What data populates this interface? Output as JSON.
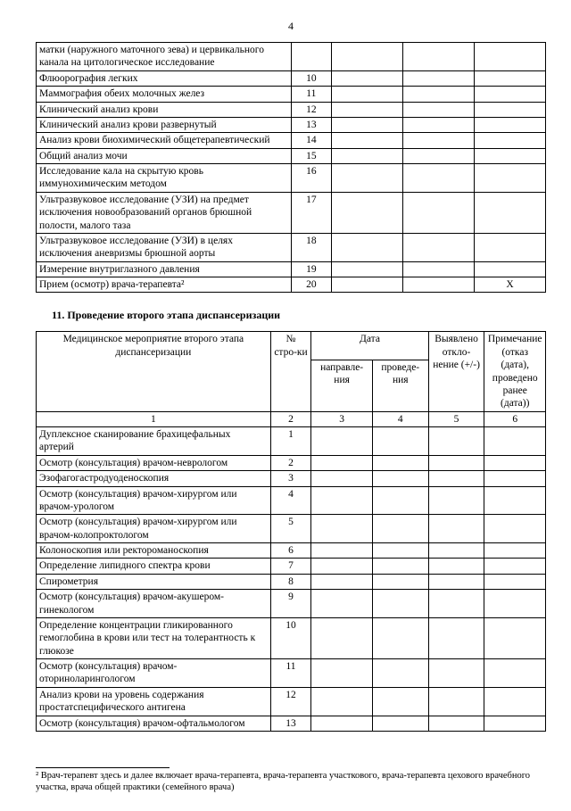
{
  "page_number": "4",
  "table1": {
    "col_widths_pct": [
      50,
      8,
      14,
      14,
      14
    ],
    "rows": [
      {
        "name": "матки (наружного маточного зева) и цервикального канала на цитологическое исследование",
        "num": "",
        "c3": "",
        "c4": "",
        "c5": ""
      },
      {
        "name": "Флюорография легких",
        "num": "10",
        "c3": "",
        "c4": "",
        "c5": ""
      },
      {
        "name": "Маммография обеих молочных желез",
        "num": "11",
        "c3": "",
        "c4": "",
        "c5": ""
      },
      {
        "name": "Клинический анализ крови",
        "num": "12",
        "c3": "",
        "c4": "",
        "c5": ""
      },
      {
        "name": "Клинический анализ крови развернутый",
        "num": "13",
        "c3": "",
        "c4": "",
        "c5": ""
      },
      {
        "name": "Анализ крови биохимический общетерапевтический",
        "num": "14",
        "c3": "",
        "c4": "",
        "c5": ""
      },
      {
        "name": "Общий анализ мочи",
        "num": "15",
        "c3": "",
        "c4": "",
        "c5": ""
      },
      {
        "name": "Исследование кала на скрытую кровь иммунохимическим методом",
        "num": "16",
        "c3": "",
        "c4": "",
        "c5": ""
      },
      {
        "name": "Ультразвуковое исследование (УЗИ) на предмет исключения новообразований органов брюшной полости, малого таза",
        "num": "17",
        "c3": "",
        "c4": "",
        "c5": ""
      },
      {
        "name": "Ультразвуковое исследование (УЗИ) в целях исключения аневризмы брюшной аорты",
        "num": "18",
        "c3": "",
        "c4": "",
        "c5": ""
      },
      {
        "name": "Измерение внутриглазного давления",
        "num": "19",
        "c3": "",
        "c4": "",
        "c5": ""
      },
      {
        "name": "Прием (осмотр) врача-терапевта²",
        "num": "20",
        "c3": "",
        "c4": "",
        "c5": "X"
      }
    ]
  },
  "section_title": "11. Проведение второго этапа диспансеризации",
  "table2": {
    "col_widths_pct": [
      46,
      8,
      12,
      11,
      11,
      12
    ],
    "header": {
      "col1": "Медицинское мероприятие второго этапа диспансеризации",
      "col2": "№ стро-ки",
      "col_date": "Дата",
      "col3": "направле-ния",
      "col4": "проведе-ния",
      "col5": "Выявлено откло-нение (+/-)",
      "col6": "Примечание (отказ (дата), проведено ранее (дата))"
    },
    "numrow": [
      "1",
      "2",
      "3",
      "4",
      "5",
      "6"
    ],
    "rows": [
      {
        "name": "Дуплексное сканирование брахицефальных артерий",
        "num": "1"
      },
      {
        "name": "Осмотр (консультация) врачом-неврологом",
        "num": "2"
      },
      {
        "name": "Эзофагогастродуоденоскопия",
        "num": "3"
      },
      {
        "name": "Осмотр (консультация) врачом-хирургом или врачом-урологом",
        "num": "4"
      },
      {
        "name": "Осмотр (консультация) врачом-хирургом или врачом-колопроктологом",
        "num": "5"
      },
      {
        "name": "Колоноскопия или ректороманоскопия",
        "num": "6"
      },
      {
        "name": "Определение липидного спектра крови",
        "num": "7"
      },
      {
        "name": "Спирометрия",
        "num": "8"
      },
      {
        "name": "Осмотр (консультация) врачом-акушером-гинекологом",
        "num": "9"
      },
      {
        "name": "Определение концентрации гликированного гемоглобина в крови или тест на толерантность к глюкозе",
        "num": "10"
      },
      {
        "name": "Осмотр (консультация) врачом-оториноларингологом",
        "num": "11"
      },
      {
        "name": "Анализ крови на уровень содержания простатспецифического антигена",
        "num": "12"
      },
      {
        "name": "Осмотр (консультация) врачом-офтальмологом",
        "num": "13"
      }
    ]
  },
  "footnote": "² Врач-терапевт здесь и далее включает врача-терапевта, врача-терапевта участкового, врача-терапевта цехового врачебного участка, врача общей практики (семейного врача)"
}
